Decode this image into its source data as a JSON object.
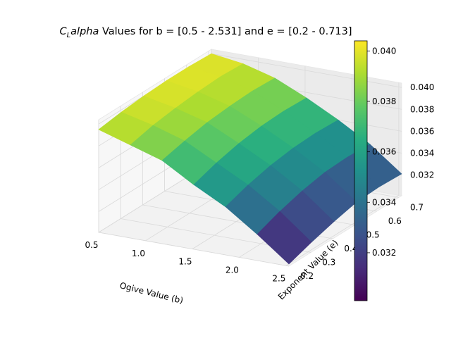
{
  "chart_data": {
    "type": "surface",
    "title_prefix": "C",
    "title_sub": "L",
    "title_italic": "alpha",
    "title_rest": " Values for b = [0.5 - 2.531] and e = [0.2 - 0.713]",
    "xlabel": "Ogive Value (b)",
    "ylabel": "Exponent Value (e)",
    "colormap": "viridis",
    "xlim": [
      0.5,
      2.531
    ],
    "ylim": [
      0.2,
      0.713
    ],
    "zlim": [
      0.0301,
      0.0404
    ],
    "xticks": [
      "0.5",
      "1.0",
      "1.5",
      "2.0",
      "2.5"
    ],
    "yticks": [
      "0.2",
      "0.3",
      "0.4",
      "0.5",
      "0.6",
      "0.7"
    ],
    "zticks": [
      "0.032",
      "0.034",
      "0.036",
      "0.038",
      "0.040"
    ],
    "colorbar_ticks": [
      "0.032",
      "0.034",
      "0.036",
      "0.038",
      "0.040"
    ],
    "b_values": [
      0.5,
      0.838,
      1.177,
      1.515,
      1.854,
      2.192,
      2.531
    ],
    "e_values": [
      0.2,
      0.303,
      0.405,
      0.508,
      0.61,
      0.713
    ],
    "z_values": [
      [
        0.0395,
        0.0398,
        0.04,
        0.0401,
        0.0401,
        0.04
      ],
      [
        0.0386,
        0.0391,
        0.0394,
        0.0396,
        0.0397,
        0.0396
      ],
      [
        0.0377,
        0.0382,
        0.0386,
        0.0388,
        0.0389,
        0.0388
      ],
      [
        0.036,
        0.0367,
        0.0372,
        0.0375,
        0.0376,
        0.0375
      ],
      [
        0.0345,
        0.0352,
        0.0357,
        0.036,
        0.0361,
        0.036
      ],
      [
        0.0325,
        0.0333,
        0.0339,
        0.0343,
        0.0344,
        0.0343
      ],
      [
        0.0303,
        0.031,
        0.0316,
        0.0321,
        0.0322,
        0.0321
      ]
    ]
  }
}
